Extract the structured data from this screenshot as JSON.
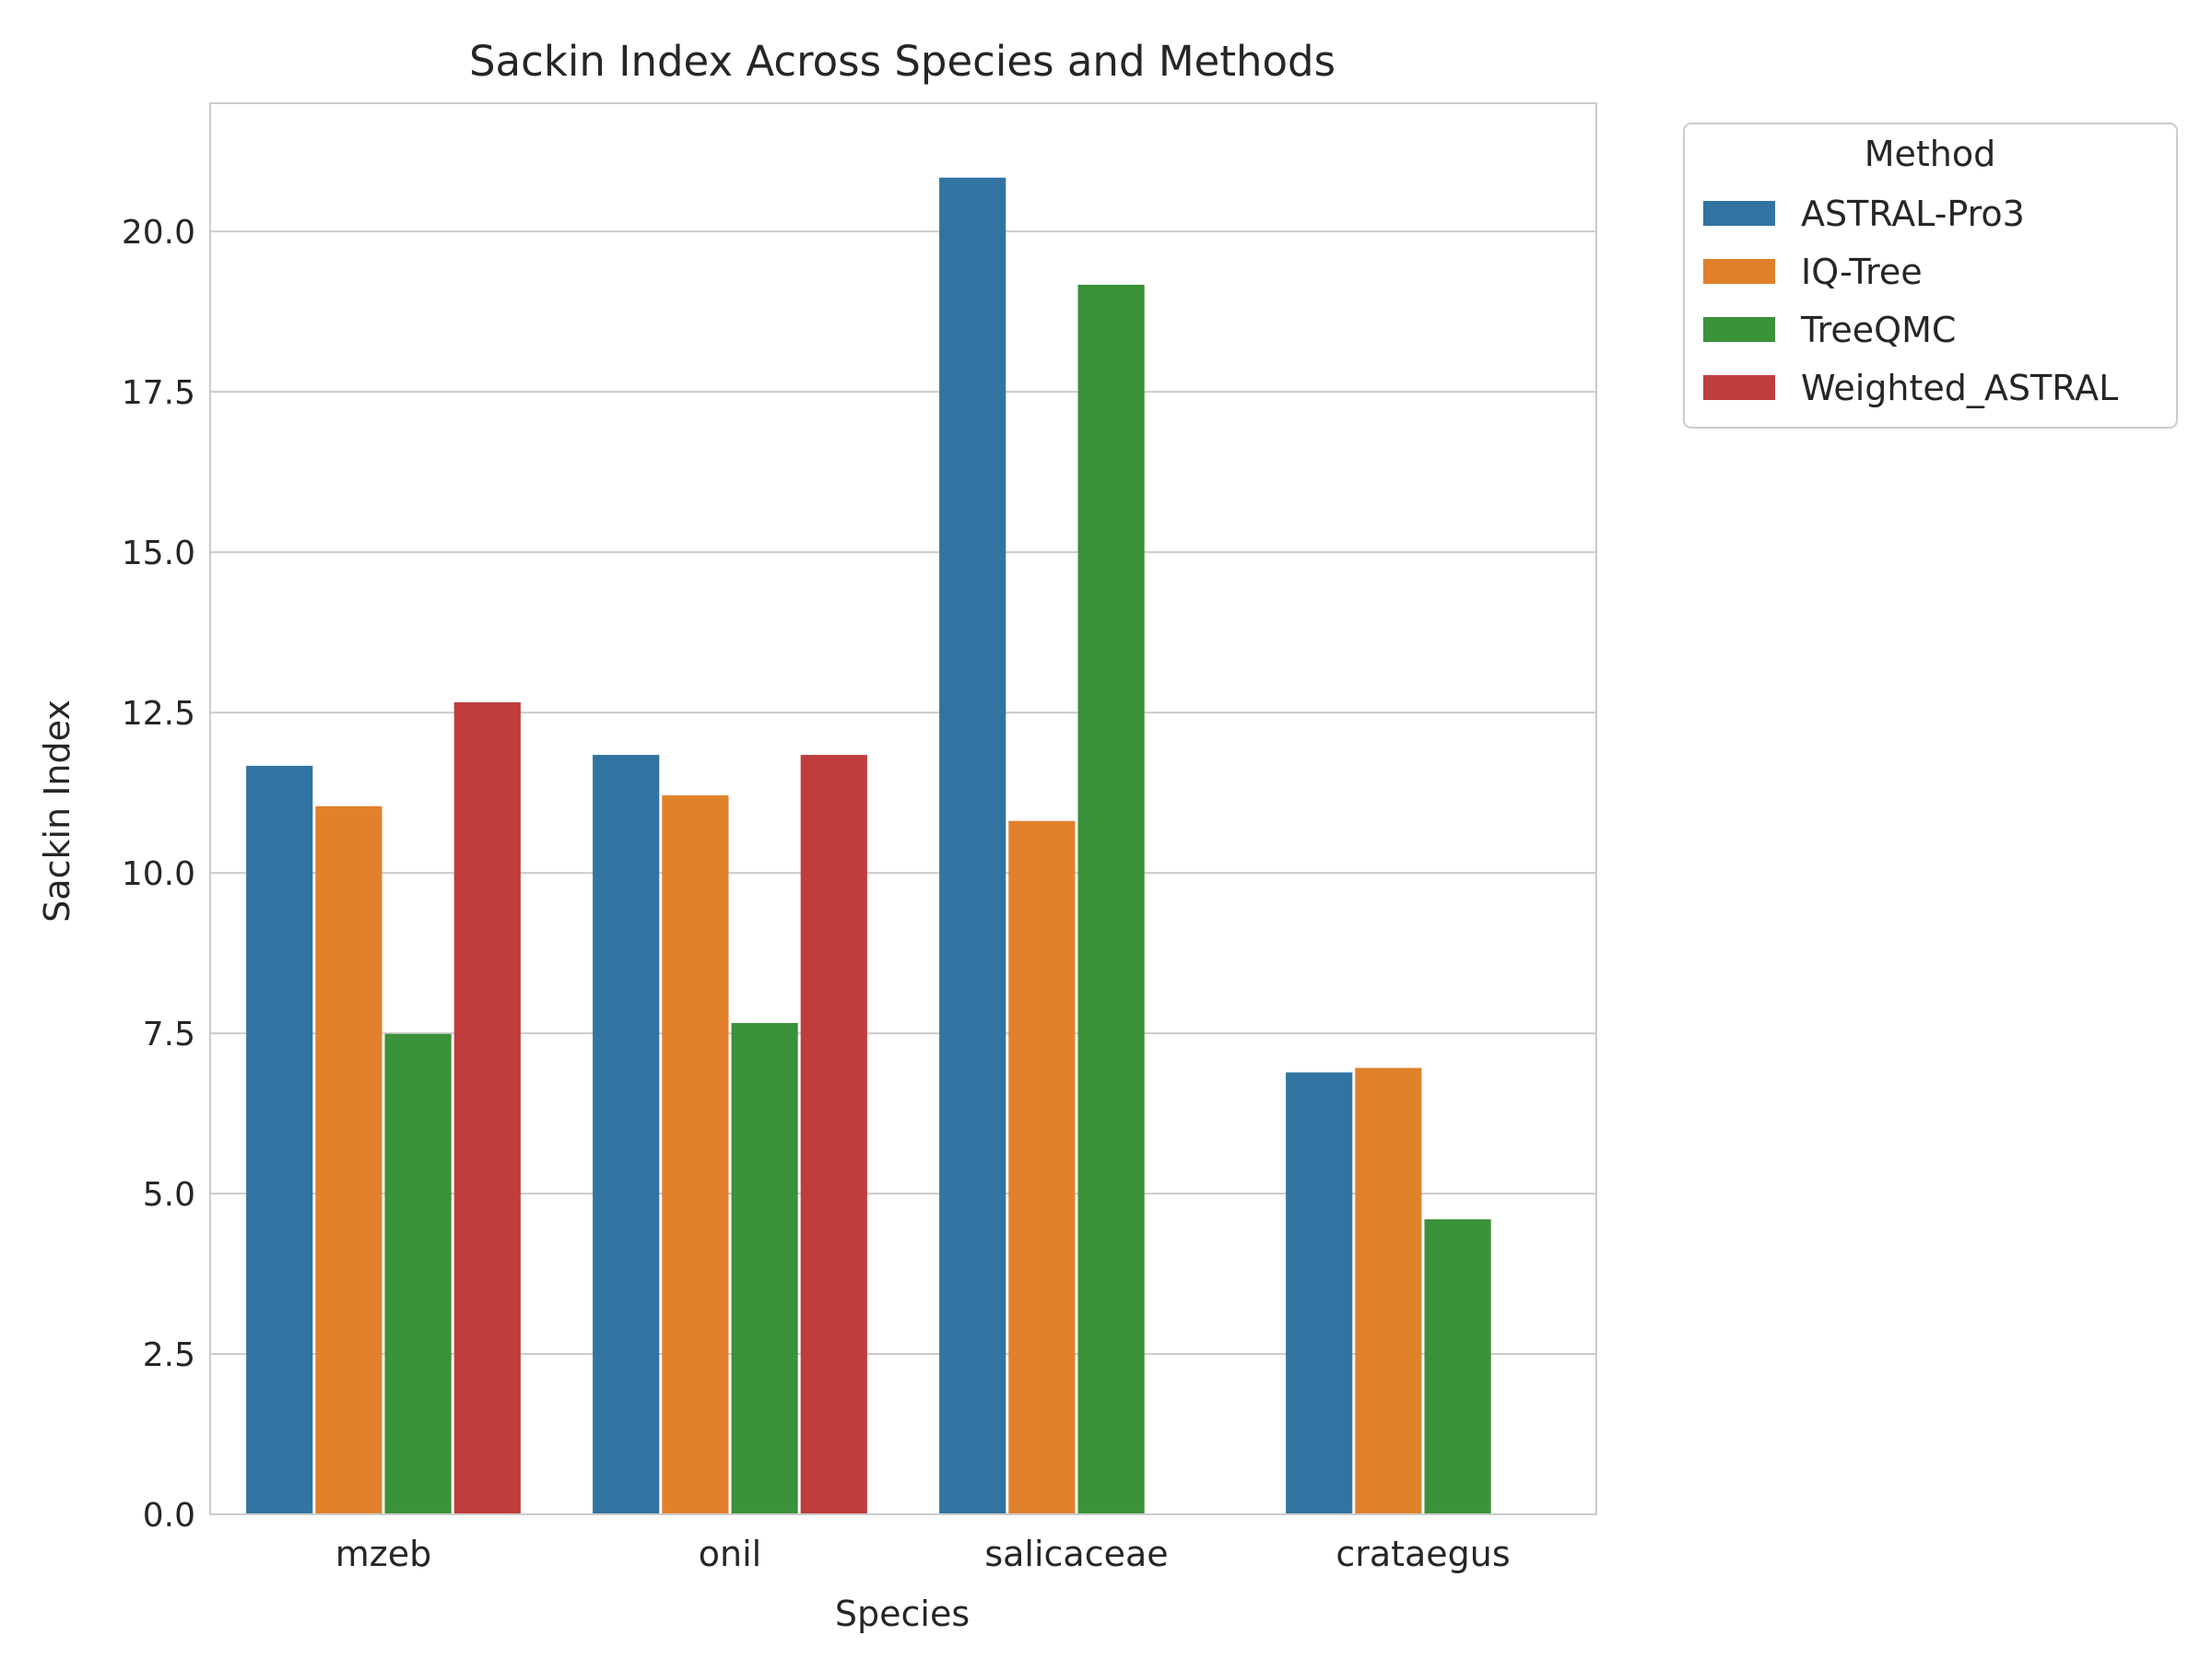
{
  "chart_data": {
    "type": "bar",
    "title": "Sackin Index Across Species and Methods",
    "xlabel": "Species",
    "ylabel": "Sackin Index",
    "categories": [
      "mzeb",
      "onil",
      "salicaceae",
      "crataegus"
    ],
    "ylim": [
      0,
      22
    ],
    "yticks": [
      "0.0",
      "2.5",
      "5.0",
      "7.5",
      "10.0",
      "12.5",
      "15.0",
      "17.5",
      "20.0"
    ],
    "grid": true,
    "legend_title": "Method",
    "legend_position": "outside-top-right",
    "series": [
      {
        "name": "ASTRAL-Pro3",
        "color": "#3274a1",
        "values": [
          11.67,
          11.84,
          20.84,
          6.89
        ]
      },
      {
        "name": "IQ-Tree",
        "color": "#e1812c",
        "values": [
          11.04,
          11.21,
          10.81,
          6.96
        ]
      },
      {
        "name": "TreeQMC",
        "color": "#3a923a",
        "values": [
          7.49,
          7.66,
          19.17,
          4.6
        ]
      },
      {
        "name": "Weighted_ASTRAL",
        "color": "#c03d3e",
        "values": [
          12.66,
          11.84,
          null,
          null
        ]
      }
    ]
  }
}
